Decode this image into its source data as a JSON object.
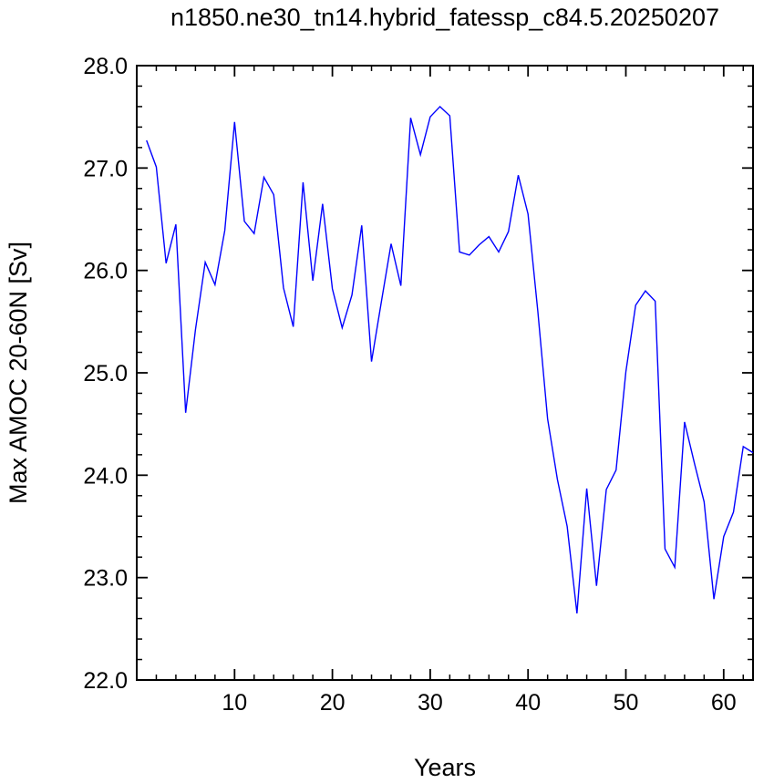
{
  "chart_data": {
    "type": "line",
    "title": "n1850.ne30_tn14.hybrid_fatessp_c84.5.20250207",
    "xlabel": "Years",
    "ylabel": "Max AMOC 20-60N [Sv]",
    "xlim": [
      0,
      63
    ],
    "ylim": [
      22.0,
      28.0
    ],
    "xticks": [
      10,
      20,
      30,
      40,
      50,
      60
    ],
    "xtick_labels": [
      "10",
      "20",
      "30",
      "40",
      "50",
      "60"
    ],
    "yticks": [
      22.0,
      23.0,
      24.0,
      25.0,
      26.0,
      27.0,
      28.0
    ],
    "ytick_labels": [
      "22.0",
      "23.0",
      "24.0",
      "25.0",
      "26.0",
      "27.0",
      "28.0"
    ],
    "grid": false,
    "line_color": "#0000ff",
    "series": [
      {
        "x": [
          1,
          2,
          3,
          4,
          5,
          6,
          7,
          8,
          9,
          10,
          11,
          12,
          13,
          14,
          15,
          16,
          17,
          18,
          19,
          20,
          21,
          22,
          23,
          24,
          25,
          26,
          27,
          28,
          29,
          30,
          31,
          32,
          33,
          34,
          35,
          36,
          37,
          38,
          39,
          40,
          41,
          42,
          43,
          44,
          45,
          46,
          47,
          48,
          49,
          50,
          51,
          52,
          53,
          54,
          55,
          56,
          57,
          58,
          59,
          60,
          61,
          62,
          63
        ],
        "values": [
          27.27,
          27.01,
          26.07,
          26.45,
          24.61,
          25.42,
          26.08,
          25.86,
          26.39,
          27.45,
          26.48,
          26.36,
          26.91,
          26.74,
          25.83,
          25.45,
          26.86,
          25.9,
          26.65,
          25.82,
          25.44,
          25.76,
          26.44,
          25.11,
          25.69,
          26.26,
          25.85,
          27.49,
          27.13,
          27.5,
          27.6,
          27.51,
          26.18,
          26.15,
          26.25,
          26.33,
          26.18,
          26.38,
          26.93,
          26.55,
          25.6,
          24.55,
          23.96,
          23.5,
          22.65,
          23.87,
          22.92,
          23.86,
          24.05,
          25.01,
          25.66,
          25.8,
          25.7,
          23.28,
          23.1,
          24.52,
          24.12,
          23.74,
          22.79,
          23.4,
          23.64,
          24.28,
          24.22
        ]
      }
    ]
  }
}
